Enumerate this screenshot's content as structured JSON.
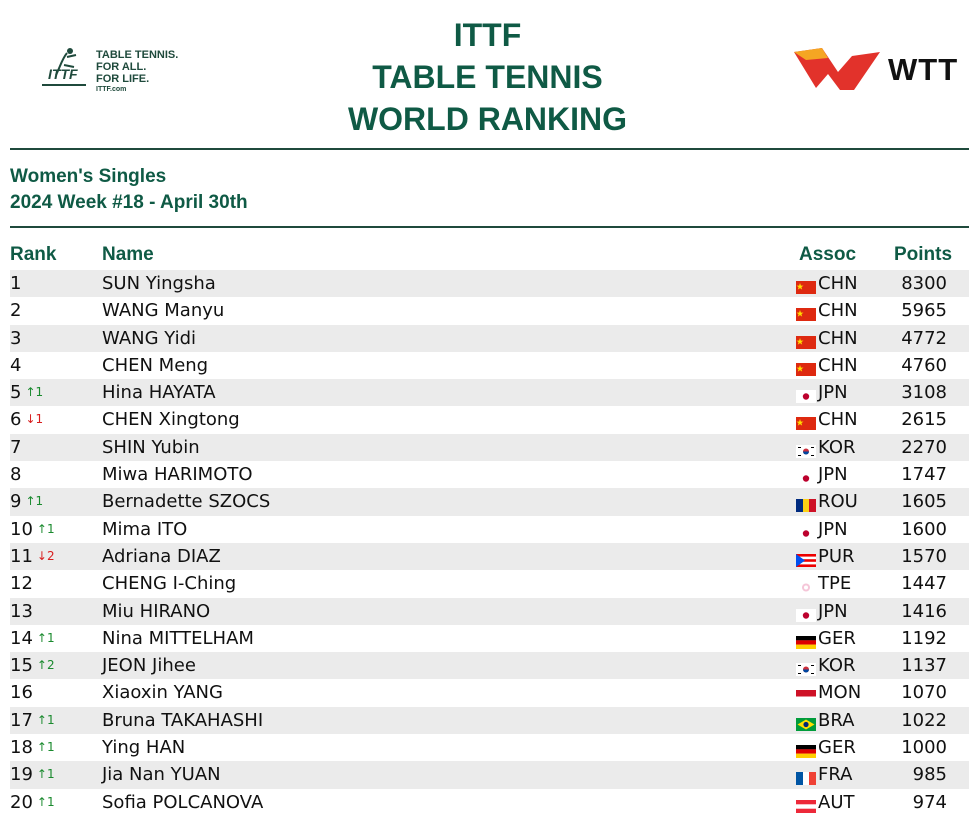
{
  "header": {
    "tagline": [
      "TABLE TENNIS.",
      "FOR ALL.",
      "FOR LIFE."
    ],
    "tagline_url": "ITTF.com",
    "title_lines": [
      "ITTF",
      "TABLE TENNIS",
      "WORLD RANKING"
    ],
    "wtt_label": "WTT",
    "colors": {
      "green": "#0f5a45",
      "wtt_red": "#e2322b",
      "wtt_orange": "#f5a623"
    }
  },
  "subheader": {
    "category": "Women's Singles",
    "week": "2024 Week #18 - April 30th"
  },
  "columns": {
    "rank": "Rank",
    "name": "Name",
    "assoc": "Assoc",
    "points": "Points"
  },
  "rows": [
    {
      "rank": "1",
      "move": "",
      "dir": "",
      "name": "SUN Yingsha",
      "assoc": "CHN",
      "flag": "flag-china",
      "points": "8300"
    },
    {
      "rank": "2",
      "move": "",
      "dir": "",
      "name": "WANG Manyu",
      "assoc": "CHN",
      "flag": "flag-china",
      "points": "5965"
    },
    {
      "rank": "3",
      "move": "",
      "dir": "",
      "name": "WANG Yidi",
      "assoc": "CHN",
      "flag": "flag-china",
      "points": "4772"
    },
    {
      "rank": "4",
      "move": "",
      "dir": "",
      "name": "CHEN Meng",
      "assoc": "CHN",
      "flag": "flag-china",
      "points": "4760"
    },
    {
      "rank": "5",
      "move": "↑1",
      "dir": "up",
      "name": "Hina HAYATA",
      "assoc": "JPN",
      "flag": "flag-japan",
      "points": "3108"
    },
    {
      "rank": "6",
      "move": "↓1",
      "dir": "down",
      "name": "CHEN Xingtong",
      "assoc": "CHN",
      "flag": "flag-china",
      "points": "2615"
    },
    {
      "rank": "7",
      "move": "",
      "dir": "",
      "name": "SHIN Yubin",
      "assoc": "KOR",
      "flag": "flag-korea",
      "points": "2270"
    },
    {
      "rank": "8",
      "move": "",
      "dir": "",
      "name": "Miwa HARIMOTO",
      "assoc": "JPN",
      "flag": "flag-japan",
      "points": "1747"
    },
    {
      "rank": "9",
      "move": "↑1",
      "dir": "up",
      "name": "Bernadette SZOCS",
      "assoc": "ROU",
      "flag": "flag-romania",
      "points": "1605"
    },
    {
      "rank": "10",
      "move": "↑1",
      "dir": "up",
      "name": "Mima ITO",
      "assoc": "JPN",
      "flag": "flag-japan",
      "points": "1600"
    },
    {
      "rank": "11",
      "move": "↓2",
      "dir": "down",
      "name": "Adriana DIAZ",
      "assoc": "PUR",
      "flag": "flag-puerto-rico",
      "points": "1570"
    },
    {
      "rank": "12",
      "move": "",
      "dir": "",
      "name": "CHENG I-Ching",
      "assoc": "TPE",
      "flag": "flag-chinese-taipei",
      "points": "1447"
    },
    {
      "rank": "13",
      "move": "",
      "dir": "",
      "name": "Miu HIRANO",
      "assoc": "JPN",
      "flag": "flag-japan",
      "points": "1416"
    },
    {
      "rank": "14",
      "move": "↑1",
      "dir": "up",
      "name": "Nina MITTELHAM",
      "assoc": "GER",
      "flag": "flag-germany",
      "points": "1192"
    },
    {
      "rank": "15",
      "move": "↑2",
      "dir": "up",
      "name": "JEON Jihee",
      "assoc": "KOR",
      "flag": "flag-korea",
      "points": "1137"
    },
    {
      "rank": "16",
      "move": "",
      "dir": "",
      "name": "Xiaoxin YANG",
      "assoc": "MON",
      "flag": "flag-monaco",
      "points": "1070"
    },
    {
      "rank": "17",
      "move": "↑1",
      "dir": "up",
      "name": "Bruna TAKAHASHI",
      "assoc": "BRA",
      "flag": "flag-brazil",
      "points": "1022"
    },
    {
      "rank": "18",
      "move": "↑1",
      "dir": "up",
      "name": "Ying HAN",
      "assoc": "GER",
      "flag": "flag-germany",
      "points": "1000"
    },
    {
      "rank": "19",
      "move": "↑1",
      "dir": "up",
      "name": "Jia Nan YUAN",
      "assoc": "FRA",
      "flag": "flag-france",
      "points": "985"
    },
    {
      "rank": "20",
      "move": "↑1",
      "dir": "up",
      "name": "Sofia POLCANOVA",
      "assoc": "AUT",
      "flag": "flag-austria",
      "points": "974"
    }
  ]
}
